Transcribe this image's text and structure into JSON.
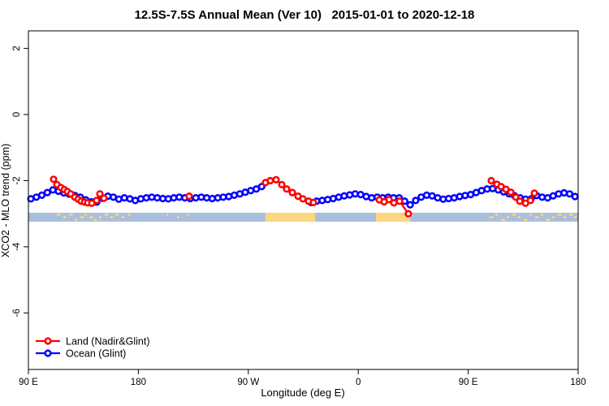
{
  "title": "12.5S-7.5S Annual Mean (Ver 10)   2015-01-01 to 2020-12-18",
  "chart_data": {
    "type": "scatter",
    "title": "12.5S-7.5S Annual Mean (Ver 10)   2015-01-01 to 2020-12-18",
    "xlabel": "Longitude (deg E)",
    "ylabel": "XCO2 - MLO trend (ppm)",
    "x_axis": {
      "xlim_deg": [
        0,
        450
      ],
      "note": "axis position in degrees east of 90E, wrapping past dateline and Greenwich",
      "tick_positions_deg": [
        0,
        90,
        180,
        270,
        360,
        450
      ],
      "tick_labels": [
        "90 E",
        "180",
        "90 W",
        "0",
        "90 E",
        "180"
      ]
    },
    "y_axis": {
      "ylim": [
        -7.71,
        2.53
      ],
      "ticks": [
        2,
        0,
        -2,
        -4,
        -6
      ]
    },
    "grid": false,
    "legend_position": "bottom-left-inside",
    "series": [
      {
        "name": "Ocean (Glint)",
        "color": "#0000ff",
        "marker": "open-circle",
        "start_deg": 2,
        "step_deg": 4.5,
        "values": [
          -2.55,
          -2.5,
          -2.44,
          -2.36,
          -2.28,
          -2.32,
          -2.37,
          -2.41,
          -2.45,
          -2.5,
          -2.58,
          -2.64,
          -2.65,
          -2.53,
          -2.47,
          -2.5,
          -2.56,
          -2.52,
          -2.55,
          -2.6,
          -2.55,
          -2.52,
          -2.5,
          -2.52,
          -2.54,
          -2.55,
          -2.52,
          -2.5,
          -2.52,
          -2.54,
          -2.52,
          -2.5,
          -2.52,
          -2.54,
          -2.52,
          -2.5,
          -2.48,
          -2.44,
          -2.4,
          -2.35,
          -2.3,
          -2.25,
          -2.18,
          null,
          null,
          null,
          null,
          null,
          null,
          null,
          null,
          -2.66,
          -2.62,
          -2.6,
          -2.57,
          -2.54,
          -2.5,
          -2.46,
          -2.43,
          -2.4,
          -2.42,
          -2.48,
          -2.52,
          -2.5,
          -2.52,
          -2.5,
          -2.52,
          -2.52,
          -2.62,
          -2.73,
          -2.6,
          -2.5,
          -2.44,
          -2.46,
          -2.52,
          -2.56,
          -2.54,
          -2.52,
          -2.48,
          -2.45,
          -2.42,
          -2.36,
          -2.3,
          -2.25,
          -2.24,
          -2.28,
          -2.34,
          -2.4,
          -2.46,
          -2.52,
          -2.56,
          -2.55,
          -2.45,
          -2.5,
          -2.52,
          -2.46,
          -2.4,
          -2.37,
          -2.4,
          -2.48
        ]
      },
      {
        "name": "Land (Nadir&Glint)",
        "color": "#ff0000",
        "marker": "open-circle",
        "clusters": [
          [
            [
              20.6,
              -1.96
            ],
            [
              23.3,
              -2.12
            ],
            [
              26.6,
              -2.21
            ],
            [
              29.3,
              -2.27
            ],
            [
              31.9,
              -2.33
            ],
            [
              34.6,
              -2.4
            ],
            [
              37.9,
              -2.5
            ],
            [
              40.6,
              -2.56
            ],
            [
              43.2,
              -2.62
            ],
            [
              45.9,
              -2.65
            ],
            [
              48.5,
              -2.67
            ],
            [
              51.9,
              -2.68
            ],
            [
              55.8,
              -2.6
            ],
            [
              58.5,
              -2.4
            ],
            [
              61.8,
              -2.53
            ]
          ],
          [
            [
              131.6,
              -2.47
            ]
          ],
          [
            [
              194.0,
              -2.06
            ],
            [
              198.0,
              -2.0
            ],
            [
              202.7,
              -1.97
            ],
            [
              207.4,
              -2.12
            ],
            [
              211.4,
              -2.25
            ],
            [
              216.0,
              -2.36
            ],
            [
              220.7,
              -2.47
            ],
            [
              224.7,
              -2.55
            ],
            [
              229.3,
              -2.62
            ],
            [
              233.3,
              -2.66
            ]
          ],
          [
            [
              287.2,
              -2.58
            ],
            [
              291.2,
              -2.64
            ],
            [
              295.2,
              -2.57
            ],
            [
              299.2,
              -2.67
            ],
            [
              303.8,
              -2.62
            ],
            [
              311.0,
              -3.0
            ]
          ],
          [
            [
              378.9,
              -2.0
            ],
            [
              383.5,
              -2.11
            ],
            [
              386.9,
              -2.18
            ],
            [
              390.9,
              -2.26
            ],
            [
              394.9,
              -2.35
            ],
            [
              398.9,
              -2.5
            ],
            [
              402.2,
              -2.62
            ],
            [
              406.9,
              -2.68
            ],
            [
              410.9,
              -2.6
            ],
            [
              414.2,
              -2.38
            ]
          ]
        ]
      }
    ],
    "map_strip": {
      "description": "geographic land/ocean strip for latitude band 12.5S-7.5S",
      "value_range": [
        -2.97,
        -3.24
      ],
      "ocean_color": "#a9bfdd",
      "land_color": "#fcd77f",
      "land_segments_deg": [
        [
          194.0,
          234.7
        ],
        [
          284.5,
          312.4
        ]
      ],
      "islands_deg": [
        [
          23.3,
          3,
          0
        ],
        [
          28.6,
          2,
          1
        ],
        [
          33.2,
          3,
          0
        ],
        [
          37.9,
          2,
          2
        ],
        [
          42.5,
          3,
          1
        ],
        [
          45.9,
          2,
          0
        ],
        [
          49.9,
          3,
          1
        ],
        [
          53.8,
          2,
          2
        ],
        [
          57.8,
          2,
          1
        ],
        [
          62.5,
          3,
          0
        ],
        [
          67.1,
          2,
          1
        ],
        [
          71.1,
          3,
          0
        ],
        [
          76.4,
          2,
          1
        ],
        [
          81.8,
          2,
          0
        ],
        [
          113.0,
          1.5,
          0
        ],
        [
          121.6,
          1.5,
          1
        ],
        [
          129.6,
          1.5,
          0
        ],
        [
          377.6,
          3,
          1
        ],
        [
          382.2,
          2,
          0
        ],
        [
          386.9,
          3,
          2
        ],
        [
          391.5,
          2,
          1
        ],
        [
          396.2,
          3,
          0
        ],
        [
          400.9,
          2,
          1
        ],
        [
          405.5,
          3,
          2
        ],
        [
          410.2,
          2,
          0
        ],
        [
          414.8,
          3,
          1
        ],
        [
          419.5,
          2,
          0
        ],
        [
          424.1,
          3,
          2
        ],
        [
          428.8,
          2,
          1
        ],
        [
          433.4,
          3,
          0
        ],
        [
          438.1,
          2,
          1
        ],
        [
          442.7,
          3,
          0
        ],
        [
          446.7,
          2,
          1
        ]
      ]
    }
  },
  "legend": {
    "entries": [
      {
        "label": "Land (Nadir&Glint)",
        "color": "#ff0000"
      },
      {
        "label": "Ocean (Glint)",
        "color": "#0000ff"
      }
    ]
  }
}
